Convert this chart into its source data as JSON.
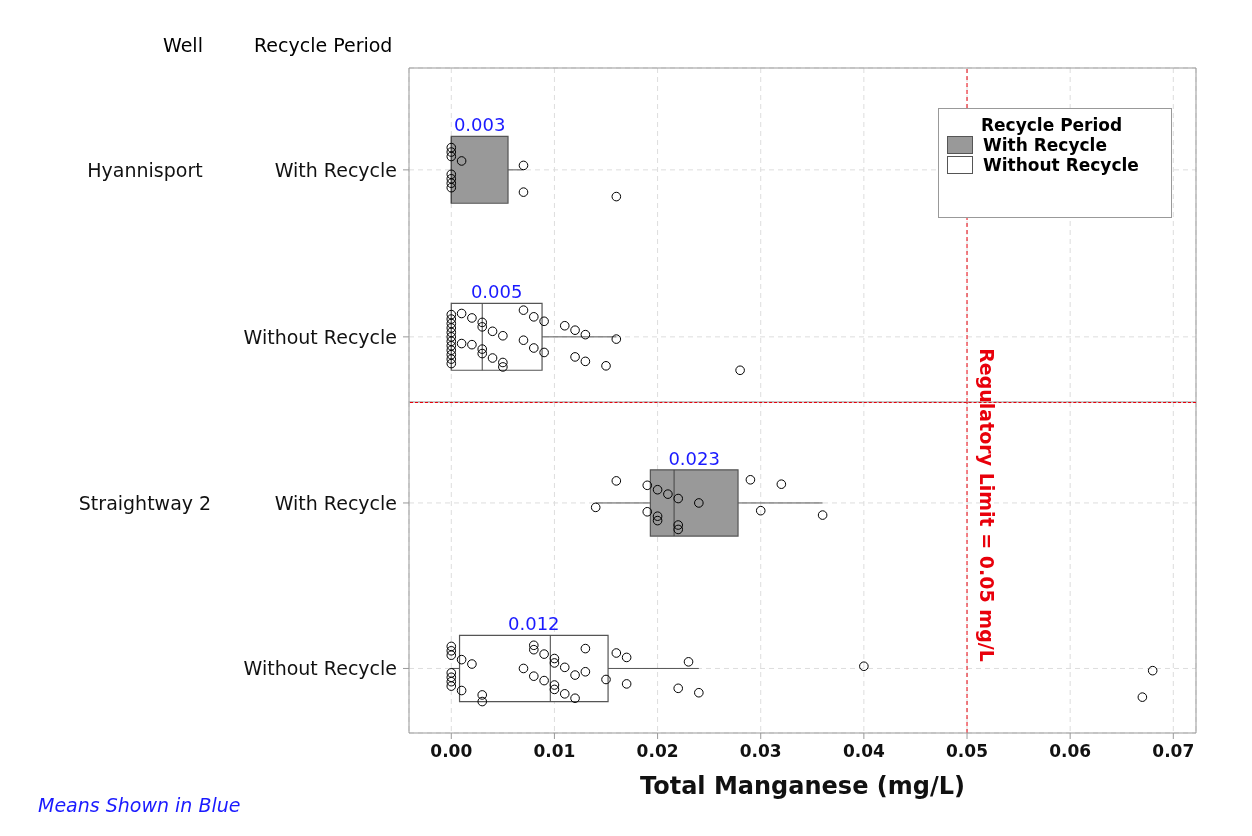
{
  "chart_data": [
    {
      "type": "box",
      "orientation": "horizontal",
      "ylabel": "Hyannisport",
      "categories": [
        "With Recycle",
        "Without Recycle"
      ],
      "xlim": [
        -0.0041,
        0.0722
      ],
      "xticks": [
        0,
        0.01,
        0.02,
        0.03,
        0.04,
        0.05,
        0.06,
        0.07
      ],
      "tick_labels": "y",
      "grid": true,
      "legend": "top right",
      "legend_title": "Recycle Period",
      "marker": "circle",
      "series": [
        {
          "name": "With Recycle",
          "color": "#999999",
          "boxes": [
            {
              "low": 0,
              "q1": 0,
              "median": 0,
              "q3": 0.0055,
              "high": 0.007
            },
            null
          ]
        },
        {
          "name": "Without Recycle",
          "color": "#ffffff",
          "boxes": [
            null,
            {
              "low": 0,
              "q1": 0,
              "median": 0.003,
              "q3": 0.0088,
              "high": 0.016
            }
          ]
        },
        {
          "type": "scatter",
          "color": "#000000",
          "x": [
            "With Recycle",
            "With Recycle",
            "With Recycle",
            "With Recycle",
            "With Recycle",
            "With Recycle",
            "With Recycle",
            "With Recycle",
            "With Recycle",
            "With Recycle",
            "With Recycle"
          ],
          "values": [
            0,
            0,
            0,
            0,
            0,
            0,
            0,
            0.001,
            0.007,
            0.007,
            0.016
          ]
        },
        {
          "type": "scatter",
          "color": "#000000",
          "x": [
            "Without Recycle",
            "Without Recycle",
            "Without Recycle",
            "Without Recycle",
            "Without Recycle",
            "Without Recycle",
            "Without Recycle",
            "Without Recycle",
            "Without Recycle",
            "Without Recycle",
            "Without Recycle",
            "Without Recycle",
            "Without Recycle",
            "Without Recycle",
            "Without Recycle",
            "Without Recycle",
            "Without Recycle",
            "Without Recycle",
            "Without Recycle",
            "Without Recycle",
            "Without Recycle",
            "Without Recycle",
            "Without Recycle",
            "Without Recycle",
            "Without Recycle",
            "Without Recycle",
            "Without Recycle",
            "Without Recycle",
            "Without Recycle",
            "Without Recycle",
            "Without Recycle",
            "Without Recycle",
            "Without Recycle",
            "Without Recycle",
            "Without Recycle",
            "Without Recycle",
            "Without Recycle",
            "Without Recycle",
            "Without Recycle"
          ],
          "values": [
            0,
            0,
            0,
            0,
            0,
            0,
            0,
            0,
            0,
            0,
            0,
            0,
            0.001,
            0.002,
            0.002,
            0.003,
            0.003,
            0.003,
            0.003,
            0.004,
            0.004,
            0.005,
            0.005,
            0.005,
            0.007,
            0.008,
            0.008,
            0.009,
            0.009,
            0.011,
            0.012,
            0.012,
            0.013,
            0.013,
            0.015,
            0.016,
            0.028,
            0.001,
            0.007
          ]
        }
      ],
      "ref_lines": [
        {
          "axis": "x",
          "value": 0.05,
          "color": "#e8000b",
          "line_style": "dashed"
        }
      ],
      "annotations": [
        "Well",
        "Recycle Period",
        "0.003",
        "0.005"
      ]
    },
    {
      "type": "box",
      "orientation": "horizontal",
      "ylabel": "Straightway 2",
      "categories": [
        "With Recycle",
        "Without Recycle"
      ],
      "xlim": [
        -0.0041,
        0.0722
      ],
      "xticks": [
        {
          "value": 0,
          "label": "0.00"
        },
        0.01,
        0.02,
        0.03,
        0.04,
        0.05,
        0.06,
        0.07
      ],
      "xlabel": "Total Manganese (mg/L)",
      "grid": true,
      "marker": "circle",
      "series": [
        {
          "color": "#999999",
          "boxes": [
            {
              "low": 0.014,
              "q1": 0.0193,
              "median": 0.0216,
              "q3": 0.0278,
              "high": 0.036
            },
            null
          ]
        },
        {
          "color": "#ffffff",
          "boxes": [
            null,
            {
              "low": 0,
              "q1": 0.0008,
              "median": 0.0096,
              "q3": 0.0152,
              "high": 0.024
            }
          ]
        },
        {
          "type": "scatter",
          "color": "#000000",
          "x": [
            "With Recycle",
            "With Recycle",
            "With Recycle",
            "With Recycle",
            "With Recycle",
            "With Recycle",
            "With Recycle",
            "With Recycle",
            "With Recycle",
            "With Recycle",
            "With Recycle",
            "With Recycle",
            "With Recycle",
            "With Recycle",
            "With Recycle",
            "With Recycle"
          ],
          "values": [
            0.014,
            0.016,
            0.019,
            0.019,
            0.02,
            0.02,
            0.02,
            0.021,
            0.022,
            0.022,
            0.022,
            0.024,
            0.029,
            0.03,
            0.032,
            0.036
          ]
        },
        {
          "type": "scatter",
          "color": "#000000",
          "x": [
            "Without Recycle",
            "Without Recycle",
            "Without Recycle",
            "Without Recycle",
            "Without Recycle",
            "Without Recycle",
            "Without Recycle",
            "Without Recycle",
            "Without Recycle",
            "Without Recycle",
            "Without Recycle",
            "Without Recycle",
            "Without Recycle",
            "Without Recycle",
            "Without Recycle",
            "Without Recycle",
            "Without Recycle",
            "Without Recycle",
            "Without Recycle",
            "Without Recycle",
            "Without Recycle",
            "Without Recycle",
            "Without Recycle",
            "Without Recycle",
            "Without Recycle",
            "Without Recycle",
            "Without Recycle",
            "Without Recycle",
            "Without Recycle",
            "Without Recycle",
            "Without Recycle",
            "Without Recycle",
            "Without Recycle",
            "Without Recycle",
            "Without Recycle",
            "Without Recycle",
            "Without Recycle",
            "Without Recycle"
          ],
          "values": [
            0,
            0,
            0,
            0,
            0,
            0,
            0,
            0.001,
            0.001,
            0.002,
            0.003,
            0.007,
            0.008,
            0.008,
            0.008,
            0.009,
            0.009,
            0.01,
            0.01,
            0.01,
            0.01,
            0.011,
            0.011,
            0.012,
            0.013,
            0.013,
            0.015,
            0.016,
            0.017,
            0.017,
            0.022,
            0.023,
            0.024,
            0.04,
            0.067,
            0.068,
            0.003,
            0.012
          ]
        }
      ],
      "ref_lines": [
        {
          "axis": "x",
          "value": 0.05,
          "label": "Regulatory Limit = 0.05 mg/L",
          "color": "#e8000b",
          "line_style": "dashed"
        }
      ],
      "annotations": [
        "0.023",
        "0.012",
        "Means Shown in Blue"
      ]
    }
  ]
}
